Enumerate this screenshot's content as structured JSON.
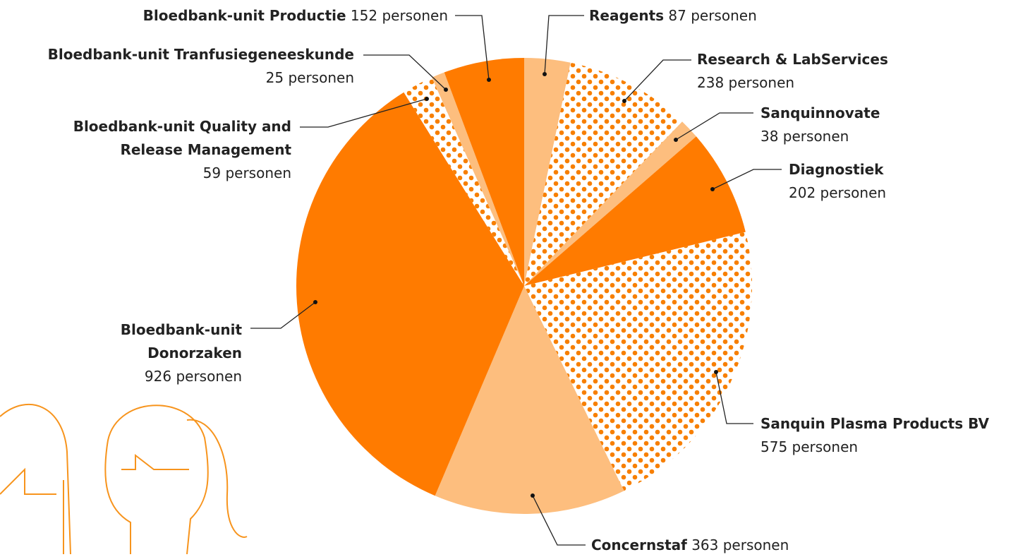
{
  "chart_data": {
    "type": "pie",
    "categories": [
      "Reagents",
      "Research & LabServices",
      "Sanquinnovate",
      "Diagnostiek",
      "Sanquin Plasma Products BV",
      "Concernstaf",
      "Bloedbank-unit Donorzaken",
      "Bloedbank-unit Quality and Release Management",
      "Bloedbank-unit Tranfusiegeneeskunde",
      "Bloedbank-unit Productie"
    ],
    "values": [
      87,
      238,
      38,
      202,
      575,
      363,
      926,
      59,
      25,
      152
    ],
    "value_labels": [
      "87 personen",
      "238 personen",
      "38 personen",
      "202 personen",
      "575 personen",
      "363 personen",
      "926 personen",
      "59 personen",
      "25 personen",
      "152 personen"
    ],
    "colors": [
      "#fdbe7e",
      "#f77f00",
      "#fdbe7e",
      "#ff7b00",
      "#f77f00",
      "#fdbe7e",
      "#ff7b00",
      "#f77f00",
      "#fdbe7e",
      "#ff7b00"
    ],
    "fills": [
      "solid",
      "dots",
      "solid",
      "solid",
      "dots",
      "solid",
      "solid",
      "dots",
      "solid",
      "solid"
    ]
  }
}
